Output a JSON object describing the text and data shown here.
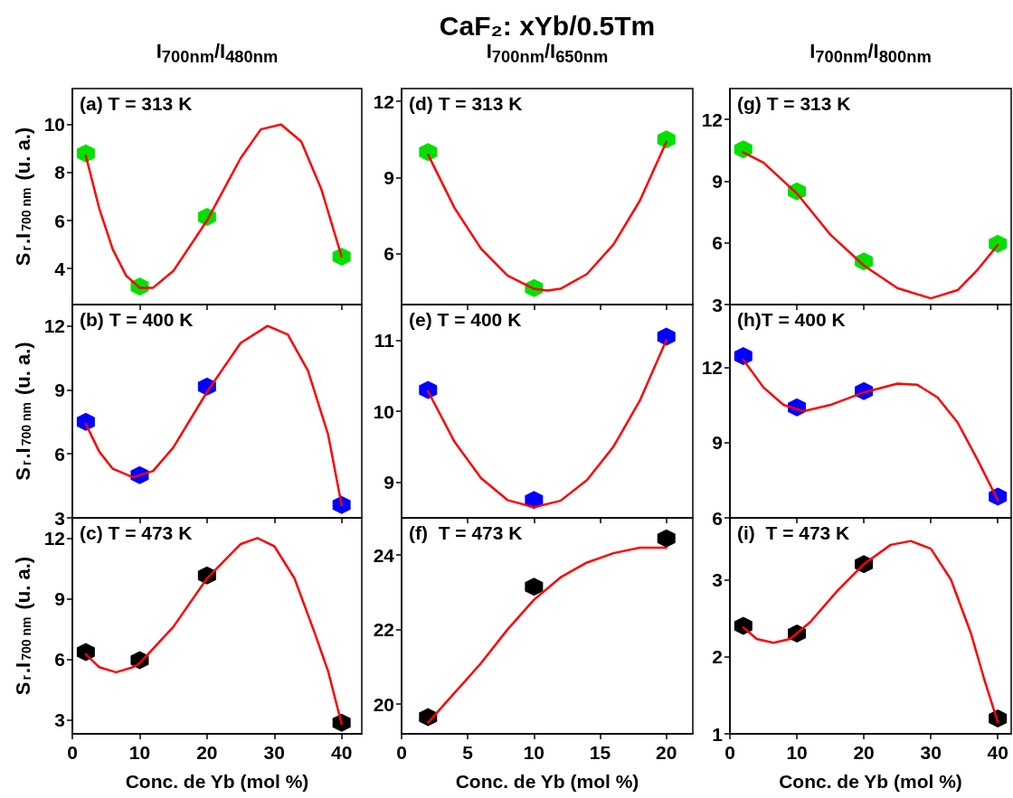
{
  "chart_data": [
    {
      "type": "scatter",
      "subtitle": "I$_{700nm}$/I$_{480nm}$",
      "ylabel": "S$_{r}$.I$_{700 nm}$ (u. a.)",
      "annotations": [
        "(a) T = 313 K"
      ],
      "xlim": [
        0,
        43
      ],
      "xticks": [
        0,
        10,
        20,
        30,
        40
      ],
      "ylim": [
        2.5,
        11.5
      ],
      "yticks": [
        4,
        6,
        8,
        10
      ],
      "tick_labels": "y",
      "series": [
        {
          "color": "#00e000",
          "x": [
            2,
            10,
            20,
            40
          ],
          "values": [
            8.8,
            3.25,
            6.15,
            4.5
          ]
        },
        {
          "type": "line",
          "color": "#ff0000",
          "x": [
            2,
            4,
            6,
            8,
            10,
            12,
            15,
            20,
            25,
            28,
            31,
            34,
            37,
            40
          ],
          "values": [
            8.7,
            6.5,
            4.8,
            3.7,
            3.2,
            3.2,
            3.9,
            6.0,
            8.6,
            9.8,
            10.0,
            9.3,
            7.3,
            4.5
          ]
        }
      ]
    },
    {
      "type": "scatter",
      "ylabel": "S$_{r}$.I$_{700 nm}$ (u. a.)",
      "annotations": [
        "(b) T = 400 K"
      ],
      "xlim": [
        0,
        43
      ],
      "xticks": [
        0,
        10,
        20,
        30,
        40
      ],
      "ylim": [
        3,
        13
      ],
      "yticks": [
        3,
        6,
        9,
        12
      ],
      "tick_labels": "y",
      "series": [
        {
          "color": "#0000ff",
          "x": [
            2,
            10,
            20,
            40
          ],
          "values": [
            7.5,
            5.0,
            9.15,
            3.6
          ]
        },
        {
          "type": "line",
          "color": "#ff0000",
          "x": [
            2,
            4,
            6,
            9,
            12,
            15,
            20,
            25,
            29,
            32,
            35,
            38,
            40
          ],
          "values": [
            7.4,
            6.1,
            5.3,
            4.9,
            5.2,
            6.3,
            8.9,
            11.2,
            12.0,
            11.6,
            9.9,
            6.9,
            3.6
          ]
        }
      ]
    },
    {
      "type": "scatter",
      "ylabel": "S$_{r}$.I$_{700 nm}$ (u. a.)",
      "xlabel": "Conc. de Yb (mol %)",
      "annotations": [
        "(c) T = 473 K"
      ],
      "xlim": [
        0,
        43
      ],
      "xticks": [
        0,
        10,
        20,
        30,
        40
      ],
      "ylim": [
        2.3,
        13
      ],
      "yticks": [
        3,
        6,
        9,
        12
      ],
      "series": [
        {
          "color": "#000000",
          "x": [
            2,
            10,
            20,
            40
          ],
          "values": [
            6.35,
            5.95,
            10.15,
            2.85
          ]
        },
        {
          "type": "line",
          "color": "#ff0000",
          "x": [
            2,
            4,
            6.5,
            9,
            10,
            15,
            20,
            25,
            27.5,
            30,
            33,
            36,
            38,
            40
          ],
          "values": [
            6.25,
            5.6,
            5.35,
            5.6,
            5.8,
            7.6,
            10.0,
            11.7,
            12.0,
            11.6,
            10.0,
            7.3,
            5.4,
            2.8
          ]
        }
      ]
    },
    {
      "type": "scatter",
      "title": "CaF₂: xYb/0.5Tm",
      "subtitle": "I$_{700nm}$/I$_{650nm}$",
      "annotations": [
        "(d) T = 313 K"
      ],
      "xlim": [
        0,
        22
      ],
      "xticks": [
        0,
        5,
        10,
        15,
        20
      ],
      "ylim": [
        4,
        12.5
      ],
      "yticks": [
        6,
        9,
        12
      ],
      "tick_labels": "y",
      "series": [
        {
          "color": "#00e000",
          "x": [
            2,
            10,
            20
          ],
          "values": [
            10.0,
            4.65,
            10.5
          ]
        },
        {
          "type": "line",
          "color": "#ff0000",
          "x": [
            2,
            4,
            6,
            8,
            10,
            11,
            12,
            14,
            16,
            18,
            20
          ],
          "values": [
            9.9,
            7.8,
            6.2,
            5.14,
            4.62,
            4.55,
            4.62,
            5.2,
            6.36,
            8.09,
            10.4
          ]
        }
      ]
    },
    {
      "type": "scatter",
      "annotations": [
        "(e) T = 400 K"
      ],
      "xlim": [
        0,
        22
      ],
      "xticks": [
        0,
        5,
        10,
        15,
        20
      ],
      "ylim": [
        8.5,
        11.5
      ],
      "yticks": [
        9,
        10,
        11
      ],
      "tick_labels": "y",
      "series": [
        {
          "color": "#0000ff",
          "x": [
            2,
            10,
            20
          ],
          "values": [
            10.3,
            8.75,
            11.05
          ]
        },
        {
          "type": "line",
          "color": "#ff0000",
          "x": [
            2,
            4,
            6,
            8,
            10,
            12,
            14,
            16,
            18,
            20
          ],
          "values": [
            10.28,
            9.57,
            9.06,
            8.75,
            8.65,
            8.74,
            9.03,
            9.5,
            10.15,
            11.0
          ]
        }
      ]
    },
    {
      "type": "scatter",
      "xlabel": "Conc. de Yb (mol %)",
      "annotations": [
        "(f)  T = 473 K"
      ],
      "xlim": [
        0,
        22
      ],
      "xticks": [
        0,
        5,
        10,
        15,
        20
      ],
      "ylim": [
        19.2,
        25
      ],
      "yticks": [
        20,
        22,
        24
      ],
      "series": [
        {
          "color": "#000000",
          "x": [
            2,
            10,
            20
          ],
          "values": [
            19.65,
            23.15,
            24.45
          ]
        },
        {
          "type": "line",
          "color": "#ff0000",
          "x": [
            2,
            4,
            6,
            8,
            10,
            12,
            14,
            16,
            18,
            20
          ],
          "values": [
            19.5,
            20.3,
            21.1,
            22.0,
            22.8,
            23.4,
            23.8,
            24.05,
            24.2,
            24.2
          ]
        }
      ]
    },
    {
      "type": "scatter",
      "subtitle": "I$_{700nm}$/I$_{800nm}$",
      "annotations": [
        "(g) T = 313 K"
      ],
      "xlim": [
        0,
        42
      ],
      "xticks": [
        0,
        10,
        20,
        30,
        40
      ],
      "ylim": [
        3,
        13.5
      ],
      "yticks": [
        3,
        6,
        9,
        12
      ],
      "tick_labels": "y",
      "series": [
        {
          "color": "#00e000",
          "x": [
            2,
            10,
            20,
            40
          ],
          "values": [
            10.55,
            8.5,
            5.1,
            5.95
          ]
        },
        {
          "type": "line",
          "color": "#ff0000",
          "x": [
            2,
            5,
            10,
            15,
            20,
            25,
            30,
            34,
            37,
            40
          ],
          "values": [
            10.4,
            9.9,
            8.4,
            6.4,
            4.9,
            3.8,
            3.3,
            3.7,
            4.7,
            5.9
          ]
        }
      ]
    },
    {
      "type": "scatter",
      "annotations": [
        "(h)T = 400 K"
      ],
      "xlim": [
        0,
        42
      ],
      "xticks": [
        0,
        10,
        20,
        30,
        40
      ],
      "ylim": [
        6,
        14.5
      ],
      "yticks": [
        6,
        9,
        12
      ],
      "tick_labels": "y",
      "series": [
        {
          "color": "#0000ff",
          "x": [
            2,
            10,
            20,
            40
          ],
          "values": [
            12.45,
            10.4,
            11.05,
            6.85
          ]
        },
        {
          "type": "line",
          "color": "#ff0000",
          "x": [
            2,
            5,
            8,
            11,
            15,
            20,
            25,
            28,
            31,
            34,
            37,
            40
          ],
          "values": [
            12.3,
            11.2,
            10.5,
            10.25,
            10.5,
            11.0,
            11.35,
            11.3,
            10.8,
            9.8,
            8.3,
            6.7
          ]
        }
      ]
    },
    {
      "type": "scatter",
      "xlabel": "Conc. de Yb (mol %)",
      "annotations": [
        "(i)  T = 473 K"
      ],
      "xlim": [
        0,
        42
      ],
      "xticks": [
        0,
        10,
        20,
        30,
        40
      ],
      "ylim": [
        1,
        3.8
      ],
      "yticks": [
        1,
        2,
        3
      ],
      "series": [
        {
          "color": "#000000",
          "x": [
            2,
            10,
            20,
            40
          ],
          "values": [
            2.4,
            2.3,
            3.2,
            1.2
          ]
        },
        {
          "type": "line",
          "color": "#ff0000",
          "x": [
            2,
            4,
            6.5,
            9,
            12,
            16,
            20,
            24,
            27,
            30,
            33,
            36,
            38,
            40
          ],
          "values": [
            2.38,
            2.23,
            2.18,
            2.23,
            2.45,
            2.85,
            3.2,
            3.45,
            3.5,
            3.4,
            3.0,
            2.3,
            1.7,
            1.15
          ]
        }
      ]
    }
  ]
}
